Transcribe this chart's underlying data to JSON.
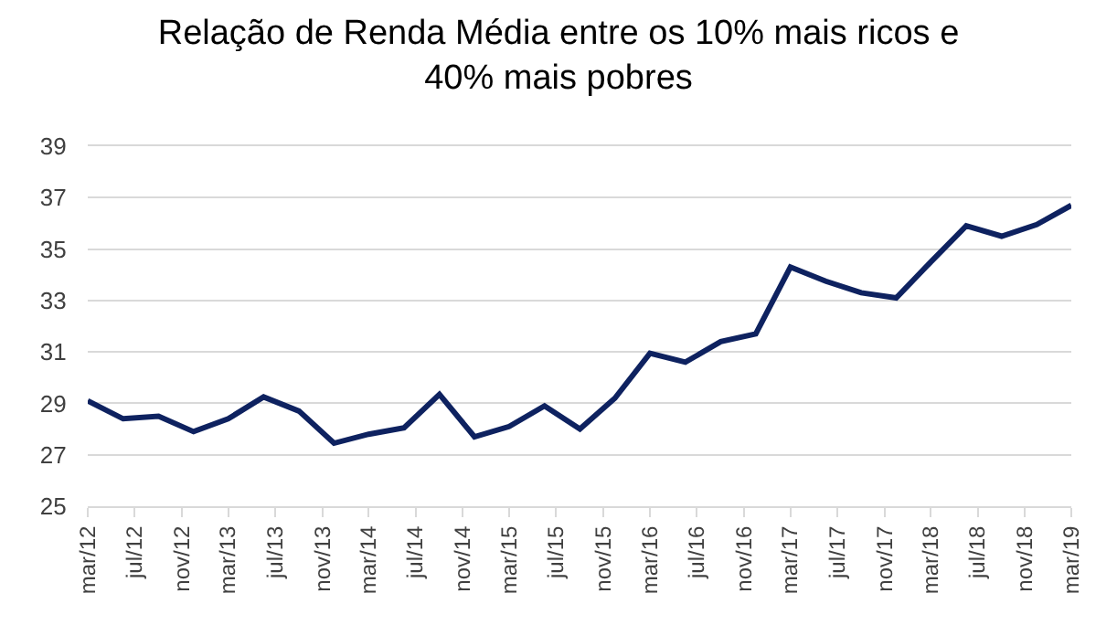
{
  "chart_data": {
    "type": "line",
    "title": "Relação de Renda Média entre os 10% mais ricos e\n40% mais pobres",
    "x": [
      "2012-03",
      "2012-06",
      "2012-09",
      "2012-12",
      "2013-03",
      "2013-06",
      "2013-09",
      "2013-12",
      "2014-03",
      "2014-06",
      "2014-09",
      "2014-12",
      "2015-03",
      "2015-06",
      "2015-09",
      "2015-12",
      "2016-03",
      "2016-06",
      "2016-09",
      "2016-12",
      "2017-03",
      "2017-06",
      "2017-09",
      "2017-12",
      "2018-03",
      "2018-06",
      "2018-09",
      "2018-12",
      "2019-03"
    ],
    "series": [
      {
        "color": "#0e2260",
        "values": [
          29.1,
          28.4,
          28.5,
          27.9,
          28.4,
          29.25,
          28.7,
          27.45,
          27.8,
          28.05,
          29.35,
          27.7,
          28.1,
          28.9,
          28.0,
          29.2,
          30.95,
          30.6,
          31.4,
          31.7,
          34.3,
          33.75,
          33.3,
          33.1,
          34.5,
          35.9,
          35.5,
          35.95,
          36.7
        ]
      }
    ],
    "xlim": [
      "2012-03",
      "2019-03"
    ],
    "xticks": [
      {
        "value": "2012-03",
        "label": "mar/12"
      },
      {
        "value": "2012-07",
        "label": "jul/12"
      },
      {
        "value": "2012-11",
        "label": "nov/12"
      },
      {
        "value": "2013-03",
        "label": "mar/13"
      },
      {
        "value": "2013-07",
        "label": "jul/13"
      },
      {
        "value": "2013-11",
        "label": "nov/13"
      },
      {
        "value": "2014-03",
        "label": "mar/14"
      },
      {
        "value": "2014-07",
        "label": "jul/14"
      },
      {
        "value": "2014-11",
        "label": "nov/14"
      },
      {
        "value": "2015-03",
        "label": "mar/15"
      },
      {
        "value": "2015-07",
        "label": "jul/15"
      },
      {
        "value": "2015-11",
        "label": "nov/15"
      },
      {
        "value": "2016-03",
        "label": "mar/16"
      },
      {
        "value": "2016-07",
        "label": "jul/16"
      },
      {
        "value": "2016-11",
        "label": "nov/16"
      },
      {
        "value": "2017-03",
        "label": "mar/17"
      },
      {
        "value": "2017-07",
        "label": "jul/17"
      },
      {
        "value": "2017-11",
        "label": "nov/17"
      },
      {
        "value": "2018-03",
        "label": "mar/18"
      },
      {
        "value": "2018-07",
        "label": "jul/18"
      },
      {
        "value": "2018-11",
        "label": "nov/18"
      },
      {
        "value": "2019-03",
        "label": "mar/19"
      }
    ],
    "ylim": [
      25,
      39
    ],
    "yticks": [
      25,
      27,
      29,
      31,
      33,
      35,
      37,
      39
    ],
    "grid": "y",
    "marker": "none",
    "line_style": "solid"
  }
}
